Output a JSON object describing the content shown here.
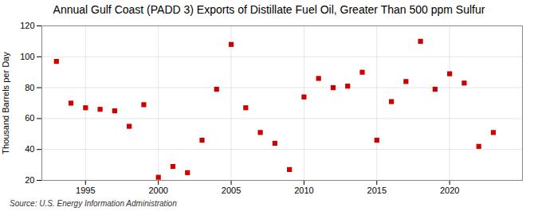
{
  "chart_data": {
    "type": "scatter",
    "title": "Annual Gulf Coast (PADD 3) Exports of Distillate Fuel Oil, Greater Than 500 ppm Sulfur",
    "ylabel": "Thousand Barrels per Day",
    "source": "Source: U.S. Energy Information Administration",
    "x": [
      1993,
      1994,
      1995,
      1996,
      1997,
      1998,
      1999,
      2000,
      2001,
      2002,
      2003,
      2004,
      2005,
      2006,
      2007,
      2008,
      2009,
      2010,
      2011,
      2012,
      2013,
      2014,
      2015,
      2016,
      2017,
      2018,
      2019,
      2020,
      2021,
      2022,
      2023
    ],
    "values": [
      97,
      70,
      67,
      66,
      65,
      55,
      69,
      22,
      29,
      25,
      46,
      79,
      108,
      67,
      51,
      44,
      27,
      74,
      86,
      80,
      81,
      90,
      46,
      71,
      84,
      110,
      79,
      89,
      83,
      42,
      51
    ],
    "color": "#cc0000",
    "marker": "square",
    "xlim": [
      1992.0,
      2025.0
    ],
    "ylim": [
      20,
      120
    ],
    "xticks": [
      1995,
      2000,
      2005,
      2010,
      2015,
      2020
    ],
    "yticks": [
      20,
      40,
      60,
      80,
      100,
      120
    ],
    "grid": true
  }
}
